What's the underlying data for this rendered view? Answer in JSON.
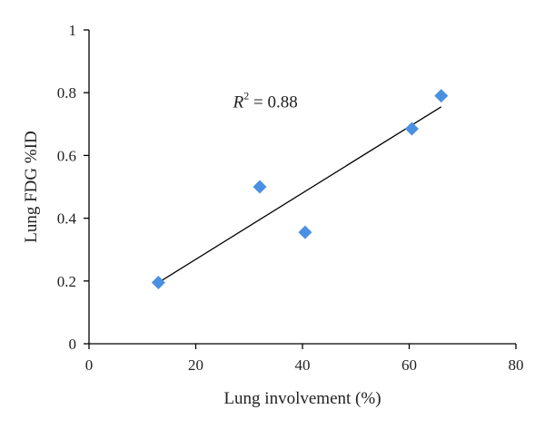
{
  "chart_data": {
    "type": "scatter",
    "title": "",
    "xlabel": "Lung involvement (%)",
    "ylabel": "Lung FDG %ID",
    "xlim": [
      0,
      80
    ],
    "ylim": [
      0,
      1
    ],
    "xticks": [
      "0",
      "20",
      "40",
      "60",
      "80"
    ],
    "yticks": [
      "0",
      "0.2",
      "0.4",
      "0.6",
      "0.8",
      "1"
    ],
    "grid": false,
    "series": [
      {
        "x": [
          13,
          32,
          40.5,
          60.5,
          66
        ],
        "y": [
          0.195,
          0.5,
          0.355,
          0.685,
          0.79
        ],
        "color": "#4a90e2",
        "marker": "diamond"
      }
    ],
    "trendline": {
      "type": "linear",
      "x": [
        13,
        66
      ],
      "y": [
        0.195,
        0.755
      ],
      "color": "#000000"
    },
    "annotations": [
      {
        "variable": "R",
        "superscript": "2",
        "text": " = 0.88",
        "x": 27,
        "y": 0.77
      }
    ]
  }
}
